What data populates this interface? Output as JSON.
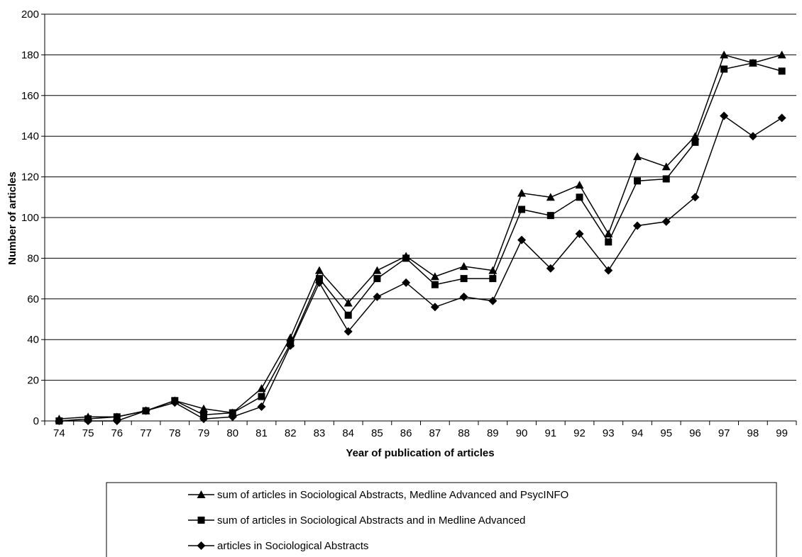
{
  "chart_data": {
    "type": "line",
    "xlabel": "Year of publication of articles",
    "ylabel": "Number of articles",
    "ylim": [
      0,
      200
    ],
    "yticks": [
      0,
      20,
      40,
      60,
      80,
      100,
      120,
      140,
      160,
      180,
      200
    ],
    "grid": true,
    "legend_position": "bottom",
    "categories": [
      "74",
      "75",
      "76",
      "77",
      "78",
      "79",
      "80",
      "81",
      "82",
      "83",
      "84",
      "85",
      "86",
      "87",
      "88",
      "89",
      "90",
      "91",
      "92",
      "93",
      "94",
      "95",
      "96",
      "97",
      "98",
      "99"
    ],
    "series": [
      {
        "name": "sum of articles in Sociological Abstracts, Medline Advanced and PsycINFO",
        "marker": "triangle",
        "values": [
          1,
          2,
          2,
          5,
          10,
          6,
          4,
          16,
          41,
          74,
          58,
          74,
          81,
          71,
          76,
          74,
          112,
          110,
          116,
          92,
          130,
          125,
          140,
          180,
          176,
          180
        ]
      },
      {
        "name": "sum of articles in Sociological Abstracts and in Medline Advanced",
        "marker": "square",
        "values": [
          0,
          1,
          2,
          5,
          10,
          3,
          4,
          12,
          38,
          70,
          52,
          70,
          80,
          67,
          70,
          70,
          104,
          101,
          110,
          88,
          118,
          119,
          137,
          173,
          176,
          172
        ]
      },
      {
        "name": "articles in Sociological Abstracts",
        "marker": "diamond",
        "values": [
          0,
          0,
          0,
          5,
          9,
          1,
          2,
          7,
          37,
          68,
          44,
          61,
          68,
          56,
          61,
          59,
          89,
          75,
          92,
          74,
          96,
          98,
          110,
          150,
          140,
          149
        ]
      }
    ]
  }
}
